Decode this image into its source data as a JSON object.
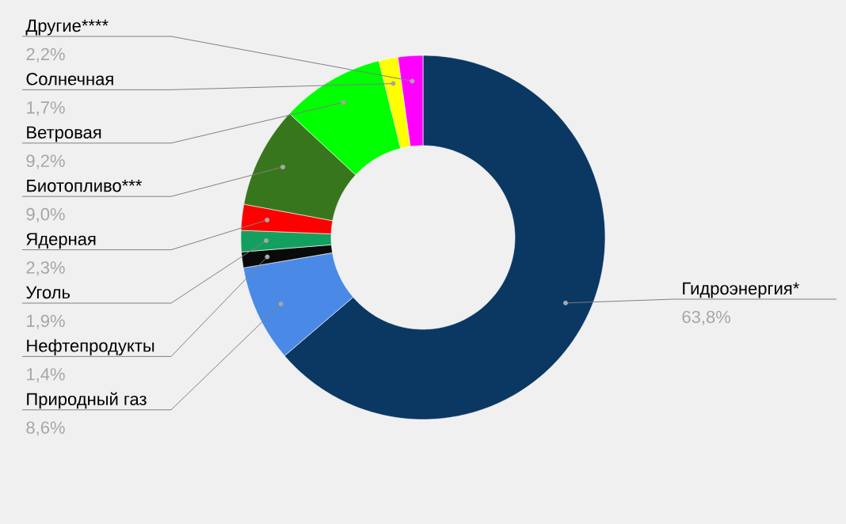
{
  "chart_data": {
    "type": "donut",
    "categories": [
      "Гидроэнергия*",
      "Природный газ",
      "Нефтепродукты",
      "Уголь",
      "Ядерная",
      "Биотопливо***",
      "Ветровая",
      "Солнечная",
      "Другие****"
    ],
    "values": [
      63.8,
      8.6,
      1.4,
      1.9,
      2.3,
      9.0,
      9.2,
      1.7,
      2.2
    ],
    "value_labels": [
      "63,8%",
      "8,6%",
      "1,4%",
      "1,9%",
      "2,3%",
      "9,0%",
      "9,2%",
      "1,7%",
      "2,2%"
    ],
    "colors": [
      "#0b3763",
      "#4a8ae6",
      "#0a0a0a",
      "#13a05f",
      "#ff0000",
      "#38761d",
      "#00ff00",
      "#ffff00",
      "#ff00ff"
    ]
  }
}
